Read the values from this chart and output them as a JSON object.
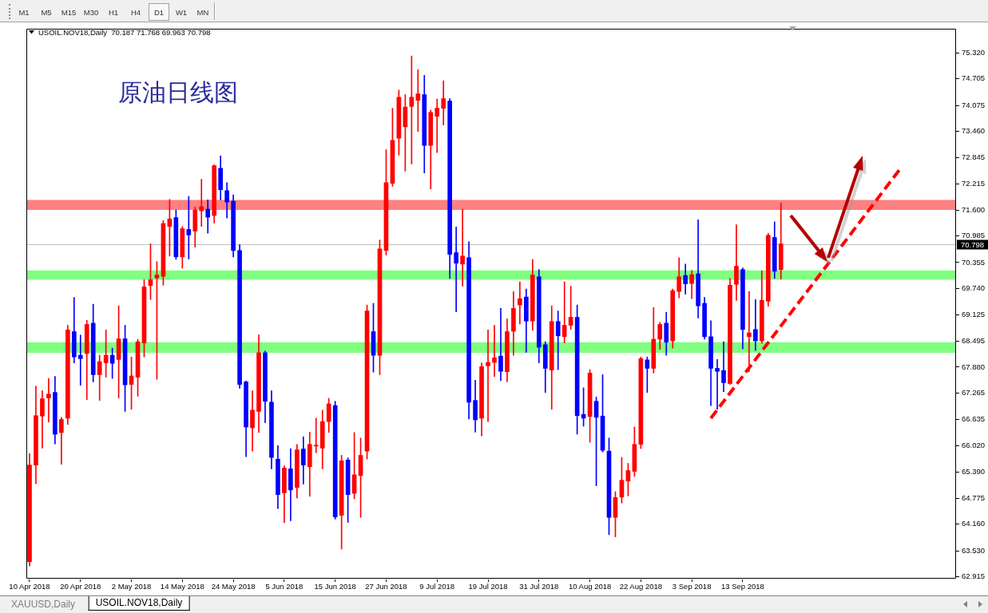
{
  "chart_data": {
    "type": "candlestick",
    "title": "原油日线图",
    "subtitle": "USOIL.NOV18,Daily  70.187 71.768 69.963 70.798",
    "annotations": [
      "M1",
      "M5",
      "M15",
      "M30",
      "H1",
      "H4",
      "D1",
      "W1",
      "MN",
      "XAUUSD,Daily",
      "USOIL.NOV18,Daily"
    ],
    "categories": [
      "10 Apr 2018",
      null,
      null,
      null,
      null,
      null,
      null,
      null,
      "20 Apr 2018",
      null,
      null,
      null,
      null,
      null,
      null,
      null,
      "2 May 2018",
      null,
      null,
      null,
      null,
      null,
      null,
      null,
      "14 May 2018",
      null,
      null,
      null,
      null,
      null,
      null,
      null,
      "24 May 2018",
      null,
      null,
      null,
      null,
      null,
      null,
      null,
      "5 Jun 2018",
      null,
      null,
      null,
      null,
      null,
      null,
      null,
      "15 Jun 2018",
      null,
      null,
      null,
      null,
      null,
      null,
      null,
      "27 Jun 2018",
      null,
      null,
      null,
      null,
      null,
      null,
      null,
      "9 Jul 2018",
      null,
      null,
      null,
      null,
      null,
      null,
      null,
      "19 Jul 2018",
      null,
      null,
      null,
      null,
      null,
      null,
      null,
      "31 Jul 2018",
      null,
      null,
      null,
      null,
      null,
      null,
      null,
      "10 Aug 2018",
      null,
      null,
      null,
      null,
      null,
      null,
      null,
      "22 Aug 2018",
      null,
      null,
      null,
      null,
      null,
      null,
      null,
      "3 Sep 2018",
      null,
      null,
      null,
      null,
      null,
      null,
      null,
      "13 Sep 2018",
      null,
      null,
      null,
      null,
      null,
      null,
      null,
      null,
      null,
      null,
      null,
      null,
      null,
      null,
      null,
      null,
      null,
      null,
      null,
      null,
      null,
      null,
      null,
      null,
      null,
      null,
      null,
      null,
      null,
      null,
      null,
      null,
      null
    ],
    "ohlc": [
      [
        63.27,
        65.83,
        63.17,
        65.56
      ],
      [
        65.56,
        67.43,
        65.12,
        66.73
      ],
      [
        66.72,
        67.32,
        65.96,
        67.13
      ],
      [
        67.15,
        67.61,
        66.58,
        67.24
      ],
      [
        67.28,
        67.66,
        66.06,
        66.29
      ],
      [
        66.33,
        66.69,
        65.58,
        66.64
      ],
      [
        66.67,
        68.87,
        66.52,
        68.76
      ],
      [
        68.72,
        69.53,
        67.98,
        68.12
      ],
      [
        68.16,
        68.64,
        67.45,
        68.08
      ],
      [
        68.2,
        68.99,
        67.11,
        68.89
      ],
      [
        68.92,
        69.37,
        67.53,
        67.7
      ],
      [
        67.7,
        68.16,
        67.09,
        68.01
      ],
      [
        67.98,
        68.76,
        67.64,
        68.16
      ],
      [
        68.16,
        68.33,
        67.61,
        67.97
      ],
      [
        68.06,
        69.33,
        67.15,
        68.55
      ],
      [
        68.55,
        68.87,
        66.83,
        67.46
      ],
      [
        67.47,
        68.12,
        66.88,
        67.67
      ],
      [
        67.64,
        68.54,
        67.19,
        68.48
      ],
      [
        68.45,
        69.95,
        68.12,
        69.78
      ],
      [
        69.81,
        70.8,
        69.48,
        69.95
      ],
      [
        69.99,
        70.38,
        67.59,
        70.06
      ],
      [
        70.03,
        71.35,
        69.82,
        71.28
      ],
      [
        71.21,
        71.85,
        70.51,
        71.39
      ],
      [
        71.42,
        71.6,
        70.43,
        70.49
      ],
      [
        70.49,
        71.21,
        70.22,
        71.16
      ],
      [
        71.14,
        71.92,
        70.44,
        71.01
      ],
      [
        71.1,
        71.67,
        70.72,
        71.6
      ],
      [
        71.58,
        72.33,
        71.21,
        71.68
      ],
      [
        71.62,
        71.84,
        71.05,
        71.43
      ],
      [
        71.47,
        72.67,
        71.29,
        72.65
      ],
      [
        72.59,
        72.88,
        71.84,
        72.08
      ],
      [
        72.06,
        72.25,
        71.41,
        71.79
      ],
      [
        71.81,
        71.96,
        70.49,
        70.64
      ],
      [
        70.64,
        70.78,
        67.38,
        67.47
      ],
      [
        67.53,
        67.55,
        65.76,
        66.46
      ],
      [
        66.44,
        67.32,
        65.89,
        66.86
      ],
      [
        66.83,
        68.64,
        66.33,
        68.22
      ],
      [
        68.22,
        68.26,
        66.56,
        67.07
      ],
      [
        67.05,
        67.32,
        65.47,
        65.74
      ],
      [
        65.7,
        66.02,
        64.53,
        64.86
      ],
      [
        64.9,
        65.54,
        64.2,
        65.49
      ],
      [
        65.47,
        65.95,
        64.24,
        64.97
      ],
      [
        65.03,
        66.05,
        64.78,
        65.92
      ],
      [
        65.94,
        66.23,
        65.11,
        65.56
      ],
      [
        65.52,
        66.34,
        64.82,
        66.05
      ],
      [
        66.01,
        66.67,
        65.85,
        66.03
      ],
      [
        65.96,
        66.86,
        65.47,
        66.59
      ],
      [
        66.59,
        67.14,
        66.33,
        67.01
      ],
      [
        66.97,
        67.07,
        64.28,
        64.33
      ],
      [
        64.37,
        65.79,
        63.57,
        65.66
      ],
      [
        65.68,
        65.73,
        64.2,
        64.86
      ],
      [
        64.89,
        66.33,
        64.76,
        65.33
      ],
      [
        65.31,
        66.2,
        64.32,
        65.79
      ],
      [
        65.89,
        69.35,
        65.7,
        69.21
      ],
      [
        68.72,
        69.39,
        67.76,
        68.16
      ],
      [
        68.16,
        70.89,
        67.7,
        70.68
      ],
      [
        70.64,
        73.03,
        70.53,
        72.25
      ],
      [
        72.23,
        74.01,
        72.16,
        73.25
      ],
      [
        73.3,
        74.44,
        72.9,
        74.27
      ],
      [
        73.57,
        74.33,
        72.52,
        74.04
      ],
      [
        74.05,
        75.25,
        72.69,
        74.27
      ],
      [
        74.2,
        74.93,
        73.46,
        74.35
      ],
      [
        74.33,
        74.79,
        72.48,
        73.13
      ],
      [
        73.13,
        73.97,
        72.1,
        73.91
      ],
      [
        73.82,
        74.23,
        72.96,
        74.01
      ],
      [
        74.01,
        74.66,
        73.61,
        74.24
      ],
      [
        74.18,
        74.24,
        69.98,
        70.55
      ],
      [
        70.59,
        71.2,
        69.19,
        70.34
      ],
      [
        70.32,
        71.62,
        69.8,
        70.51
      ],
      [
        70.47,
        70.85,
        66.65,
        67.05
      ],
      [
        67.09,
        67.57,
        66.34,
        66.63
      ],
      [
        66.67,
        67.98,
        66.25,
        67.89
      ],
      [
        67.91,
        68.76,
        66.59,
        67.99
      ],
      [
        67.99,
        68.87,
        67.66,
        68.1
      ],
      [
        68.14,
        69.27,
        67.56,
        67.78
      ],
      [
        67.77,
        69.02,
        67.53,
        68.72
      ],
      [
        68.73,
        69.67,
        68.16,
        69.27
      ],
      [
        69.35,
        69.9,
        68.9,
        69.5
      ],
      [
        69.54,
        69.73,
        68.23,
        68.97
      ],
      [
        68.97,
        70.43,
        68.75,
        70.06
      ],
      [
        70.02,
        70.19,
        67.98,
        68.35
      ],
      [
        68.41,
        68.48,
        67.28,
        67.85
      ],
      [
        67.81,
        69.33,
        66.88,
        68.96
      ],
      [
        68.96,
        69.21,
        67.82,
        68.62
      ],
      [
        68.6,
        69.9,
        68.45,
        68.87
      ],
      [
        68.87,
        69.8,
        68.77,
        69.06
      ],
      [
        69.06,
        69.35,
        66.29,
        66.73
      ],
      [
        66.76,
        67.39,
        66.48,
        66.67
      ],
      [
        66.71,
        67.82,
        66.1,
        67.74
      ],
      [
        67.07,
        67.17,
        65.07,
        66.69
      ],
      [
        66.72,
        67.7,
        65.87,
        65.91
      ],
      [
        65.89,
        66.2,
        63.91,
        64.32
      ],
      [
        64.32,
        64.93,
        63.86,
        64.79
      ],
      [
        64.8,
        65.74,
        64.66,
        65.2
      ],
      [
        65.18,
        65.6,
        64.83,
        65.43
      ],
      [
        65.41,
        66.46,
        65.29,
        66.05
      ],
      [
        66.05,
        68.12,
        65.95,
        68.08
      ],
      [
        68.05,
        68.12,
        67.28,
        67.85
      ],
      [
        67.85,
        69.29,
        67.74,
        68.54
      ],
      [
        68.54,
        68.94,
        68.3,
        68.89
      ],
      [
        68.92,
        69.18,
        68.16,
        68.47
      ],
      [
        68.5,
        69.73,
        68.33,
        69.69
      ],
      [
        69.67,
        70.47,
        69.52,
        70.02
      ],
      [
        70.05,
        70.32,
        69.61,
        69.85
      ],
      [
        69.86,
        70.17,
        69.5,
        70.07
      ],
      [
        70.09,
        71.37,
        69.04,
        69.33
      ],
      [
        69.39,
        69.53,
        68.54,
        68.6
      ],
      [
        68.6,
        68.98,
        66.97,
        67.85
      ],
      [
        67.85,
        68.06,
        66.88,
        67.78
      ],
      [
        67.8,
        68.48,
        67.3,
        67.51
      ],
      [
        67.49,
        69.98,
        67.47,
        69.82
      ],
      [
        69.84,
        71.25,
        69.46,
        70.27
      ],
      [
        70.19,
        70.23,
        68.31,
        68.77
      ],
      [
        68.6,
        69.67,
        67.77,
        68.69
      ],
      [
        68.77,
        69.48,
        68.27,
        68.5
      ],
      [
        68.5,
        70.16,
        68.44,
        69.46
      ],
      [
        69.44,
        71.05,
        69.32,
        71.0
      ],
      [
        70.95,
        71.32,
        69.98,
        70.15
      ],
      [
        70.187,
        71.768,
        69.963,
        70.798
      ],
      null,
      null,
      null,
      null,
      null,
      null,
      null,
      null,
      null,
      null,
      null,
      null,
      null,
      null,
      null,
      null,
      null,
      null,
      null,
      null,
      null,
      null,
      null,
      null,
      null,
      null,
      null
    ],
    "colors": [
      "#ff0000",
      "#ff0000",
      "#ff0000",
      "#ff0000",
      "#0000ff",
      "#ff0000",
      "#ff0000",
      "#0000ff",
      "#0000ff",
      "#ff0000",
      "#0000ff",
      "#ff0000",
      "#ff0000",
      "#0000ff",
      "#ff0000",
      "#0000ff",
      "#ff0000",
      "#ff0000",
      "#ff0000",
      "#ff0000",
      "#ff0000",
      "#ff0000",
      "#ff0000",
      "#0000ff",
      "#ff0000",
      "#0000ff",
      "#ff0000",
      "#ff0000",
      "#0000ff",
      "#ff0000",
      "#0000ff",
      "#0000ff",
      "#0000ff",
      "#0000ff",
      "#0000ff",
      "#ff0000",
      "#ff0000",
      "#0000ff",
      "#0000ff",
      "#0000ff",
      "#ff0000",
      "#0000ff",
      "#ff0000",
      "#0000ff",
      "#ff0000",
      "#ff0000",
      "#ff0000",
      "#ff0000",
      "#0000ff",
      "#ff0000",
      "#0000ff",
      "#ff0000",
      "#ff0000",
      "#ff0000",
      "#0000ff",
      "#ff0000",
      "#ff0000",
      "#ff0000",
      "#ff0000",
      "#ff0000",
      "#ff0000",
      "#ff0000",
      "#0000ff",
      "#ff0000",
      "#ff0000",
      "#ff0000",
      "#0000ff",
      "#0000ff",
      "#ff0000",
      "#0000ff",
      "#0000ff",
      "#ff0000",
      "#ff0000",
      "#ff0000",
      "#0000ff",
      "#ff0000",
      "#ff0000",
      "#ff0000",
      "#0000ff",
      "#ff0000",
      "#0000ff",
      "#0000ff",
      "#ff0000",
      "#0000ff",
      "#ff0000",
      "#ff0000",
      "#0000ff",
      "#0000ff",
      "#ff0000",
      "#0000ff",
      "#0000ff",
      "#0000ff",
      "#ff0000",
      "#ff0000",
      "#ff0000",
      "#ff0000",
      "#ff0000",
      "#0000ff",
      "#ff0000",
      "#ff0000",
      "#0000ff",
      "#ff0000",
      "#ff0000",
      "#0000ff",
      "#ff0000",
      "#0000ff",
      "#0000ff",
      "#0000ff",
      "#0000ff",
      "#0000ff",
      "#ff0000",
      "#ff0000",
      "#0000ff",
      "#ff0000",
      "#0000ff",
      "#ff0000",
      "#ff0000",
      "#0000ff",
      "#ff0000",
      null,
      null,
      null,
      null,
      null,
      null,
      null,
      null,
      null,
      null,
      null,
      null,
      null,
      null,
      null,
      null,
      null,
      null,
      null,
      null,
      null,
      null,
      null,
      null,
      null,
      null,
      null
    ],
    "series": [
      {
        "type": "line",
        "color": "#ff0000",
        "line_style": "dashed",
        "values": [
          null,
          null,
          null,
          null,
          null,
          null,
          null,
          null,
          null,
          null,
          null,
          null,
          null,
          null,
          null,
          null,
          null,
          null,
          null,
          null,
          null,
          null,
          null,
          null,
          null,
          null,
          null,
          null,
          null,
          null,
          null,
          null,
          null,
          null,
          null,
          null,
          null,
          null,
          null,
          null,
          null,
          null,
          null,
          null,
          null,
          null,
          null,
          null,
          null,
          null,
          null,
          null,
          null,
          null,
          null,
          null,
          null,
          null,
          null,
          null,
          null,
          null,
          null,
          null,
          null,
          null,
          null,
          null,
          null,
          null,
          null,
          null,
          null,
          null,
          null,
          null,
          null,
          null,
          null,
          null,
          null,
          null,
          null,
          null,
          null,
          null,
          null,
          null,
          null,
          null,
          null,
          null,
          null,
          null,
          null,
          null,
          null,
          null,
          null,
          null,
          null,
          null,
          null,
          null,
          null,
          null,
          null,
          66.67,
          null,
          null,
          null,
          null,
          null,
          null,
          null,
          null,
          null,
          null,
          null,
          null,
          null,
          null,
          null,
          null,
          null,
          null,
          null,
          null,
          null,
          null,
          null,
          null,
          null,
          null,
          null,
          null,
          null,
          72.63,
          null,
          null,
          null,
          null,
          null,
          null,
          null,
          null
        ]
      }
    ],
    "ylim": [
      62.85,
      75.88
    ],
    "yticks": [
      {
        "value": 75.32,
        "label": "75.320"
      },
      74.705,
      74.075,
      {
        "value": 73.46,
        "label": "73.460"
      },
      72.845,
      72.215,
      {
        "value": 71.6,
        "label": "71.600"
      },
      70.985,
      70.355,
      {
        "value": 69.74,
        "label": "69.740"
      },
      69.125,
      68.495,
      {
        "value": 67.88,
        "label": "67.880"
      },
      67.265,
      66.635,
      {
        "value": 66.02,
        "label": "66.020"
      },
      {
        "value": 65.39,
        "label": "65.390"
      },
      64.775,
      {
        "value": 64.16,
        "label": "64.160"
      },
      {
        "value": 63.53,
        "label": "63.530"
      },
      62.915
    ],
    "ref_lines": [
      {
        "axis": "y",
        "value": 70.798,
        "label": "70.798",
        "color": "#c0c0c0"
      }
    ],
    "bands": [
      {
        "axis": "y",
        "from": 71.6,
        "to": 71.84,
        "color": "#ff8080"
      },
      {
        "axis": "y",
        "from": 69.95,
        "to": 70.17,
        "color": "#80ff80"
      },
      {
        "axis": "y",
        "from": 68.22,
        "to": 68.47,
        "color": "#80ff80"
      }
    ]
  }
}
